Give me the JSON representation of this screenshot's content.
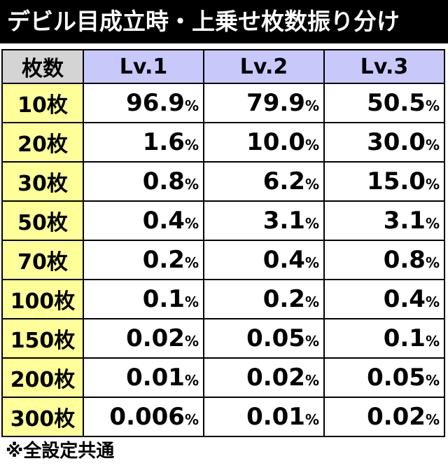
{
  "header": {
    "title": "デビル目成立時・上乗せ枚数振り分け"
  },
  "table": {
    "corner": "枚数",
    "columns": [
      "Lv.1",
      "Lv.2",
      "Lv.3"
    ],
    "rows": [
      {
        "label": "10枚",
        "cells": [
          {
            "v": "96.9",
            "u": "%"
          },
          {
            "v": "79.9",
            "u": "%"
          },
          {
            "v": "50.5",
            "u": "%"
          }
        ]
      },
      {
        "label": "20枚",
        "cells": [
          {
            "v": "1.6",
            "u": "%"
          },
          {
            "v": "10.0",
            "u": "%"
          },
          {
            "v": "30.0",
            "u": "%"
          }
        ]
      },
      {
        "label": "30枚",
        "cells": [
          {
            "v": "0.8",
            "u": "%"
          },
          {
            "v": "6.2",
            "u": "%"
          },
          {
            "v": "15.0",
            "u": "%"
          }
        ]
      },
      {
        "label": "50枚",
        "cells": [
          {
            "v": "0.4",
            "u": "%"
          },
          {
            "v": "3.1",
            "u": "%"
          },
          {
            "v": "3.1",
            "u": "%"
          }
        ]
      },
      {
        "label": "70枚",
        "cells": [
          {
            "v": "0.2",
            "u": "%"
          },
          {
            "v": "0.4",
            "u": "%"
          },
          {
            "v": "0.8",
            "u": "%"
          }
        ]
      },
      {
        "label": "100枚",
        "cells": [
          {
            "v": "0.1",
            "u": "%"
          },
          {
            "v": "0.2",
            "u": "%"
          },
          {
            "v": "0.4",
            "u": "%"
          }
        ]
      },
      {
        "label": "150枚",
        "cells": [
          {
            "v": "0.02",
            "u": "%"
          },
          {
            "v": "0.05",
            "u": "%"
          },
          {
            "v": "0.1",
            "u": "%"
          }
        ]
      },
      {
        "label": "200枚",
        "cells": [
          {
            "v": "0.01",
            "u": "%"
          },
          {
            "v": "0.02",
            "u": "%"
          },
          {
            "v": "0.05",
            "u": "%"
          }
        ]
      },
      {
        "label": "300枚",
        "cells": [
          {
            "v": "0.006",
            "u": "%"
          },
          {
            "v": "0.01",
            "u": "%"
          },
          {
            "v": "0.02",
            "u": "%"
          }
        ]
      }
    ]
  },
  "footer": {
    "note": "※全設定共通"
  }
}
